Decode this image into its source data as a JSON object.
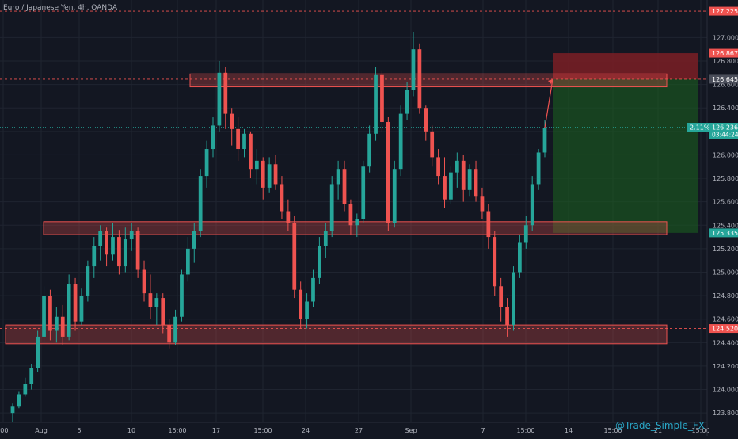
{
  "header": {
    "title": "Euro / Japanese Yen, 4h, OANDA"
  },
  "watermark": "@Trade_Simple_FX",
  "colors": {
    "background": "#131722",
    "up": "#26a69a",
    "down": "#ef5350",
    "zone": "#ef5350",
    "profit": "#1b5e20",
    "stop": "#7b1f24",
    "grid": "#1f2430"
  },
  "chart_data": {
    "type": "candlestick",
    "symbol": "EURJPY",
    "timeframe": "4h",
    "ylim": [
      123.72,
      127.32
    ],
    "yticks": [
      "123.800",
      "124.000",
      "124.200",
      "124.400",
      "124.600",
      "124.800",
      "125.000",
      "125.200",
      "125.400",
      "125.600",
      "125.800",
      "126.000",
      "126.200",
      "126.400",
      "126.600",
      "126.800",
      "127.000"
    ],
    "xticks": [
      ":00",
      "Aug",
      "5",
      "10",
      "15:00",
      "17",
      "15:00",
      "24",
      "27",
      "Sep",
      "7",
      "15:00",
      "14",
      "15:00",
      "21",
      "15:00"
    ],
    "price_labels": [
      {
        "value": 127.225,
        "text": "127.225",
        "color": "#ef5350"
      },
      {
        "value": 126.867,
        "text": "126.867",
        "color": "#ef5350"
      },
      {
        "value": 126.645,
        "text": "126.645",
        "color": "#4a4e5a"
      },
      {
        "value": 126.236,
        "text": "126.236",
        "color": "#26a69a",
        "prefix": "2.11%",
        "sub": "03:44:24"
      },
      {
        "value": 125.335,
        "text": "125.335",
        "color": "#26a69a"
      },
      {
        "value": 124.52,
        "text": "124.520",
        "color": "#ef5350"
      }
    ],
    "dashed_levels": [
      127.225,
      126.645,
      124.52
    ],
    "current_price": 126.236,
    "zones": [
      {
        "from": 126.58,
        "to": 126.69
      },
      {
        "from": 125.32,
        "to": 125.43
      },
      {
        "from": 124.39,
        "to": 124.55
      }
    ],
    "position": {
      "side": "short",
      "entry": 126.645,
      "stop": 126.867,
      "target": 125.335
    },
    "candles": [
      [
        123.8,
        123.88,
        123.72,
        123.86
      ],
      [
        123.86,
        123.98,
        123.84,
        123.96
      ],
      [
        123.96,
        124.1,
        123.94,
        124.05
      ],
      [
        124.05,
        124.22,
        124.0,
        124.18
      ],
      [
        124.18,
        124.5,
        124.15,
        124.45
      ],
      [
        124.45,
        124.88,
        124.4,
        124.8
      ],
      [
        124.8,
        124.85,
        124.42,
        124.5
      ],
      [
        124.5,
        124.7,
        124.4,
        124.62
      ],
      [
        124.62,
        124.72,
        124.38,
        124.45
      ],
      [
        124.45,
        124.98,
        124.42,
        124.9
      ],
      [
        124.9,
        124.95,
        124.5,
        124.58
      ],
      [
        124.58,
        124.86,
        124.55,
        124.8
      ],
      [
        124.8,
        125.1,
        124.75,
        125.05
      ],
      [
        125.05,
        125.3,
        124.95,
        125.22
      ],
      [
        125.22,
        125.4,
        125.1,
        125.35
      ],
      [
        125.35,
        125.38,
        125.05,
        125.15
      ],
      [
        125.15,
        125.42,
        125.1,
        125.3
      ],
      [
        125.3,
        125.36,
        124.98,
        125.05
      ],
      [
        125.05,
        125.38,
        125.0,
        125.28
      ],
      [
        125.28,
        125.42,
        125.18,
        125.35
      ],
      [
        125.35,
        125.38,
        124.95,
        125.02
      ],
      [
        125.02,
        125.1,
        124.75,
        124.82
      ],
      [
        124.82,
        124.98,
        124.6,
        124.7
      ],
      [
        124.7,
        124.82,
        124.55,
        124.78
      ],
      [
        124.78,
        124.82,
        124.48,
        124.55
      ],
      [
        124.55,
        124.6,
        124.35,
        124.4
      ],
      [
        124.4,
        124.68,
        124.38,
        124.62
      ],
      [
        124.62,
        125.02,
        124.58,
        124.98
      ],
      [
        124.98,
        125.3,
        124.92,
        125.2
      ],
      [
        125.2,
        125.42,
        125.08,
        125.35
      ],
      [
        125.35,
        125.88,
        125.3,
        125.82
      ],
      [
        125.82,
        126.12,
        125.72,
        126.05
      ],
      [
        126.05,
        126.32,
        125.98,
        126.25
      ],
      [
        126.25,
        126.8,
        126.2,
        126.7
      ],
      [
        126.7,
        126.75,
        126.22,
        126.35
      ],
      [
        126.35,
        126.4,
        126.08,
        126.22
      ],
      [
        126.22,
        126.32,
        125.95,
        126.05
      ],
      [
        126.05,
        126.22,
        125.98,
        126.18
      ],
      [
        126.18,
        126.2,
        125.8,
        125.88
      ],
      [
        125.88,
        126.05,
        125.75,
        125.95
      ],
      [
        125.95,
        125.98,
        125.62,
        125.72
      ],
      [
        125.72,
        125.98,
        125.68,
        125.92
      ],
      [
        125.92,
        126.0,
        125.7,
        125.75
      ],
      [
        125.75,
        125.82,
        125.45,
        125.52
      ],
      [
        125.52,
        125.62,
        125.35,
        125.42
      ],
      [
        125.42,
        125.48,
        124.78,
        124.85
      ],
      [
        124.85,
        124.92,
        124.52,
        124.6
      ],
      [
        124.6,
        124.82,
        124.52,
        124.75
      ],
      [
        124.75,
        125.02,
        124.7,
        124.95
      ],
      [
        124.95,
        125.3,
        124.9,
        125.22
      ],
      [
        125.22,
        125.42,
        125.12,
        125.35
      ],
      [
        125.35,
        125.82,
        125.3,
        125.75
      ],
      [
        125.75,
        125.95,
        125.62,
        125.88
      ],
      [
        125.88,
        125.95,
        125.52,
        125.58
      ],
      [
        125.58,
        125.62,
        125.32,
        125.4
      ],
      [
        125.4,
        125.5,
        125.3,
        125.45
      ],
      [
        125.45,
        125.95,
        125.42,
        125.9
      ],
      [
        125.9,
        126.25,
        125.85,
        126.18
      ],
      [
        126.18,
        126.75,
        126.12,
        126.68
      ],
      [
        126.68,
        126.72,
        126.2,
        126.28
      ],
      [
        126.28,
        126.32,
        125.35,
        125.42
      ],
      [
        125.42,
        125.95,
        125.38,
        125.88
      ],
      [
        125.88,
        126.42,
        125.82,
        126.35
      ],
      [
        126.35,
        126.62,
        126.3,
        126.55
      ],
      [
        126.55,
        127.05,
        126.5,
        126.9
      ],
      [
        126.9,
        126.95,
        126.35,
        126.4
      ],
      [
        126.4,
        126.42,
        126.12,
        126.2
      ],
      [
        126.2,
        126.25,
        125.9,
        125.98
      ],
      [
        125.98,
        126.05,
        125.75,
        125.82
      ],
      [
        125.82,
        125.98,
        125.55,
        125.62
      ],
      [
        125.62,
        125.9,
        125.58,
        125.85
      ],
      [
        125.85,
        126.02,
        125.72,
        125.95
      ],
      [
        125.95,
        126.0,
        125.6,
        125.7
      ],
      [
        125.7,
        125.92,
        125.65,
        125.88
      ],
      [
        125.88,
        125.95,
        125.6,
        125.65
      ],
      [
        125.65,
        125.72,
        125.45,
        125.52
      ],
      [
        125.52,
        125.58,
        125.2,
        125.3
      ],
      [
        125.3,
        125.35,
        124.8,
        124.88
      ],
      [
        124.88,
        124.95,
        124.58,
        124.7
      ],
      [
        124.7,
        124.78,
        124.45,
        124.55
      ],
      [
        124.55,
        125.05,
        124.5,
        125.0
      ],
      [
        125.0,
        125.32,
        124.95,
        125.25
      ],
      [
        125.25,
        125.48,
        125.2,
        125.4
      ],
      [
        125.4,
        125.82,
        125.35,
        125.75
      ],
      [
        125.75,
        126.05,
        125.7,
        126.02
      ],
      [
        126.02,
        126.3,
        125.98,
        126.23
      ]
    ]
  }
}
